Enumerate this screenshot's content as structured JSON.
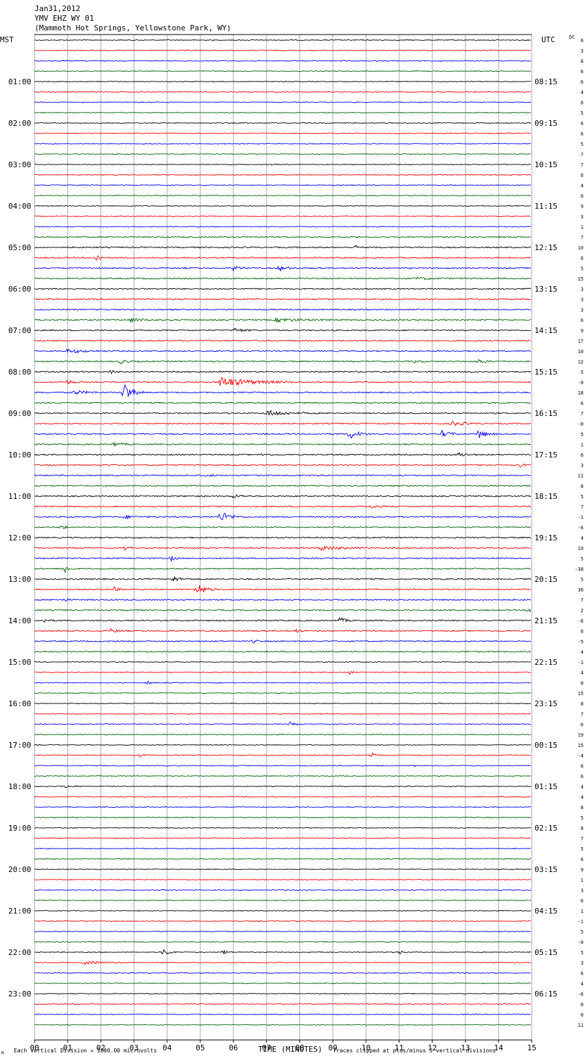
{
  "header": {
    "date": "Jan31,2012",
    "station": "YMV EHZ WY 01",
    "location": "(Mammoth Hot Springs, Yellowstone Park, WY)"
  },
  "left_axis_label": "MST",
  "right_axis_label": "UTC",
  "dc_label": "DC",
  "footer": {
    "corner_mark": "M",
    "scale_note": "Each Vertical Division = 1600.00 microvolts",
    "xlabel": "TIME (MINUTES)",
    "clip_note": "Traces clipped at plus/minus 5 vertical divisions"
  },
  "colors": {
    "black": "#000000",
    "red": "#ff0000",
    "blue": "#0000ff",
    "green": "#006400",
    "grid": "#8080a0"
  },
  "chart_data": {
    "type": "line",
    "description_free": true,
    "xlim": [
      0,
      15
    ],
    "x_ticks": [
      "00",
      "01",
      "02",
      "03",
      "04",
      "05",
      "06",
      "07",
      "08",
      "09",
      "10",
      "11",
      "12",
      "13",
      "14",
      "15"
    ],
    "trace_count": 96,
    "trace_color_cycle": [
      "black",
      "red",
      "blue",
      "green"
    ],
    "left_hour_labels": [
      "01:00",
      "02:00",
      "03:00",
      "04:00",
      "05:00",
      "06:00",
      "07:00",
      "08:00",
      "09:00",
      "10:00",
      "11:00",
      "12:00",
      "13:00",
      "14:00",
      "15:00",
      "16:00",
      "17:00",
      "18:00",
      "19:00",
      "20:00",
      "21:00",
      "22:00",
      "23:00"
    ],
    "right_hour_labels": [
      "08:15",
      "09:15",
      "10:15",
      "11:15",
      "12:15",
      "13:15",
      "14:15",
      "15:15",
      "16:15",
      "17:15",
      "18:15",
      "19:15",
      "20:15",
      "21:15",
      "22:15",
      "23:15",
      "00:15",
      "01:15",
      "02:15",
      "03:15",
      "04:15",
      "05:15",
      "06:15"
    ],
    "dc_offsets": [
      "6",
      "3",
      "8",
      "6",
      "6",
      "4",
      "6",
      "5",
      "6",
      "6",
      "5",
      "7",
      "7",
      "6",
      "4",
      "6",
      "9",
      "3",
      "1",
      "7",
      "10",
      "6",
      "5",
      "15",
      "3",
      "3",
      "3",
      "6",
      "9",
      "17",
      "10",
      "12",
      "5",
      "-0",
      "18",
      "6",
      "7",
      "-0",
      "5",
      "1",
      "6",
      "3",
      "11",
      "8",
      "5",
      "7",
      "-1",
      "-6",
      "4",
      "19",
      "5",
      "-38",
      "5",
      "36",
      "7",
      "2",
      "-6",
      "6",
      "-5",
      "4",
      "-1",
      "4",
      "0",
      "15",
      "8",
      "7",
      "6",
      "19",
      "15",
      "-4",
      "6",
      "6",
      "4",
      "4",
      "8",
      "5",
      "8",
      "7",
      "5",
      "6",
      "9",
      "1",
      "3",
      "6",
      "1",
      "-1",
      "5",
      "-0",
      "5",
      "3",
      "6",
      "4",
      "-6",
      "6",
      "0",
      "11"
    ],
    "events": [
      {
        "trace": 20,
        "minute": 9.7,
        "amplitude": 0.6,
        "duration": 0.1
      },
      {
        "trace": 21,
        "minute": 1.9,
        "amplitude": 1.9,
        "duration": 0.2
      },
      {
        "trace": 22,
        "minute": 6.0,
        "amplitude": 0.6,
        "duration": 0.5
      },
      {
        "trace": 22,
        "minute": 7.4,
        "amplitude": 0.8,
        "duration": 0.6
      },
      {
        "trace": 23,
        "minute": 11.5,
        "amplitude": 0.3,
        "duration": 1.5
      },
      {
        "trace": 24,
        "minute": 14.9,
        "amplitude": 0.4,
        "duration": 0.3
      },
      {
        "trace": 27,
        "minute": 2.9,
        "amplitude": 0.5,
        "duration": 1.2
      },
      {
        "trace": 27,
        "minute": 7.3,
        "amplitude": 0.5,
        "duration": 2.0
      },
      {
        "trace": 28,
        "minute": 6.0,
        "amplitude": 0.6,
        "duration": 0.8
      },
      {
        "trace": 30,
        "minute": 1.0,
        "amplitude": 0.5,
        "duration": 1.5
      },
      {
        "trace": 31,
        "minute": 2.6,
        "amplitude": 0.6,
        "duration": 0.6
      },
      {
        "trace": 31,
        "minute": 13.4,
        "amplitude": 0.6,
        "duration": 0.5
      },
      {
        "trace": 31,
        "minute": 11.5,
        "amplitude": 0.4,
        "duration": 0.4
      },
      {
        "trace": 32,
        "minute": 2.3,
        "amplitude": 0.6,
        "duration": 0.3
      },
      {
        "trace": 32,
        "minute": 13.2,
        "amplitude": 0.4,
        "duration": 0.3
      },
      {
        "trace": 33,
        "minute": 5.6,
        "amplitude": 1.4,
        "duration": 2.5
      },
      {
        "trace": 33,
        "minute": 1.0,
        "amplitude": 0.5,
        "duration": 0.5
      },
      {
        "trace": 34,
        "minute": 2.7,
        "amplitude": 3.0,
        "duration": 0.6
      },
      {
        "trace": 34,
        "minute": 1.2,
        "amplitude": 0.6,
        "duration": 1.0
      },
      {
        "trace": 36,
        "minute": 7.0,
        "amplitude": 0.8,
        "duration": 1.6
      },
      {
        "trace": 37,
        "minute": 12.6,
        "amplitude": 0.6,
        "duration": 1.0
      },
      {
        "trace": 38,
        "minute": 9.5,
        "amplitude": 1.4,
        "duration": 0.7
      },
      {
        "trace": 38,
        "minute": 12.3,
        "amplitude": 0.9,
        "duration": 0.7
      },
      {
        "trace": 38,
        "minute": 13.4,
        "amplitude": 1.3,
        "duration": 0.6
      },
      {
        "trace": 39,
        "minute": 2.4,
        "amplitude": 0.6,
        "duration": 0.6
      },
      {
        "trace": 40,
        "minute": 6.9,
        "amplitude": 0.5,
        "duration": 0.4
      },
      {
        "trace": 40,
        "minute": 12.8,
        "amplitude": 0.6,
        "duration": 0.6
      },
      {
        "trace": 41,
        "minute": 14.6,
        "amplitude": 0.5,
        "duration": 0.5
      },
      {
        "trace": 42,
        "minute": 5.2,
        "amplitude": 0.4,
        "duration": 0.4
      },
      {
        "trace": 44,
        "minute": 6.0,
        "amplitude": 0.5,
        "duration": 0.6
      },
      {
        "trace": 45,
        "minute": 10.2,
        "amplitude": 0.6,
        "duration": 0.4
      },
      {
        "trace": 46,
        "minute": 5.6,
        "amplitude": 1.5,
        "duration": 0.8
      },
      {
        "trace": 46,
        "minute": 2.7,
        "amplitude": 0.4,
        "duration": 1.0
      },
      {
        "trace": 47,
        "minute": 0.8,
        "amplitude": 0.6,
        "duration": 0.4
      },
      {
        "trace": 49,
        "minute": 8.6,
        "amplitude": 0.7,
        "duration": 1.5
      },
      {
        "trace": 49,
        "minute": 2.7,
        "amplitude": 0.6,
        "duration": 0.3
      },
      {
        "trace": 50,
        "minute": 4.1,
        "amplitude": 0.8,
        "duration": 0.3
      },
      {
        "trace": 51,
        "minute": 0.9,
        "amplitude": 1.6,
        "duration": 0.3
      },
      {
        "trace": 52,
        "minute": 4.2,
        "amplitude": 0.9,
        "duration": 0.4
      },
      {
        "trace": 53,
        "minute": 4.9,
        "amplitude": 2.0,
        "duration": 0.6
      },
      {
        "trace": 53,
        "minute": 2.4,
        "amplitude": 0.7,
        "duration": 0.3
      },
      {
        "trace": 54,
        "minute": 0.9,
        "amplitude": 0.5,
        "duration": 0.3
      },
      {
        "trace": 55,
        "minute": 14.9,
        "amplitude": 0.6,
        "duration": 0.4
      },
      {
        "trace": 56,
        "minute": 9.2,
        "amplitude": 1.0,
        "duration": 0.4
      },
      {
        "trace": 56,
        "minute": 0.3,
        "amplitude": 0.5,
        "duration": 0.4
      },
      {
        "trace": 57,
        "minute": 2.3,
        "amplitude": 0.5,
        "duration": 0.6
      },
      {
        "trace": 57,
        "minute": 7.9,
        "amplitude": 0.5,
        "duration": 0.3
      },
      {
        "trace": 58,
        "minute": 6.6,
        "amplitude": 0.5,
        "duration": 0.3
      },
      {
        "trace": 61,
        "minute": 9.5,
        "amplitude": 0.5,
        "duration": 0.3
      },
      {
        "trace": 62,
        "minute": 3.4,
        "amplitude": 0.6,
        "duration": 0.3
      },
      {
        "trace": 66,
        "minute": 7.7,
        "amplitude": 0.6,
        "duration": 0.4
      },
      {
        "trace": 69,
        "minute": 10.2,
        "amplitude": 0.6,
        "duration": 0.3
      },
      {
        "trace": 69,
        "minute": 3.2,
        "amplitude": 0.5,
        "duration": 0.3
      },
      {
        "trace": 70,
        "minute": 11.4,
        "amplitude": 0.4,
        "duration": 0.4
      },
      {
        "trace": 72,
        "minute": 0.9,
        "amplitude": 0.4,
        "duration": 0.6
      },
      {
        "trace": 88,
        "minute": 3.9,
        "amplitude": 1.1,
        "duration": 0.5
      },
      {
        "trace": 88,
        "minute": 5.7,
        "amplitude": 0.8,
        "duration": 0.3
      },
      {
        "trace": 88,
        "minute": 11.0,
        "amplitude": 0.6,
        "duration": 0.3
      },
      {
        "trace": 89,
        "minute": 1.5,
        "amplitude": 0.5,
        "duration": 1.5
      }
    ]
  }
}
